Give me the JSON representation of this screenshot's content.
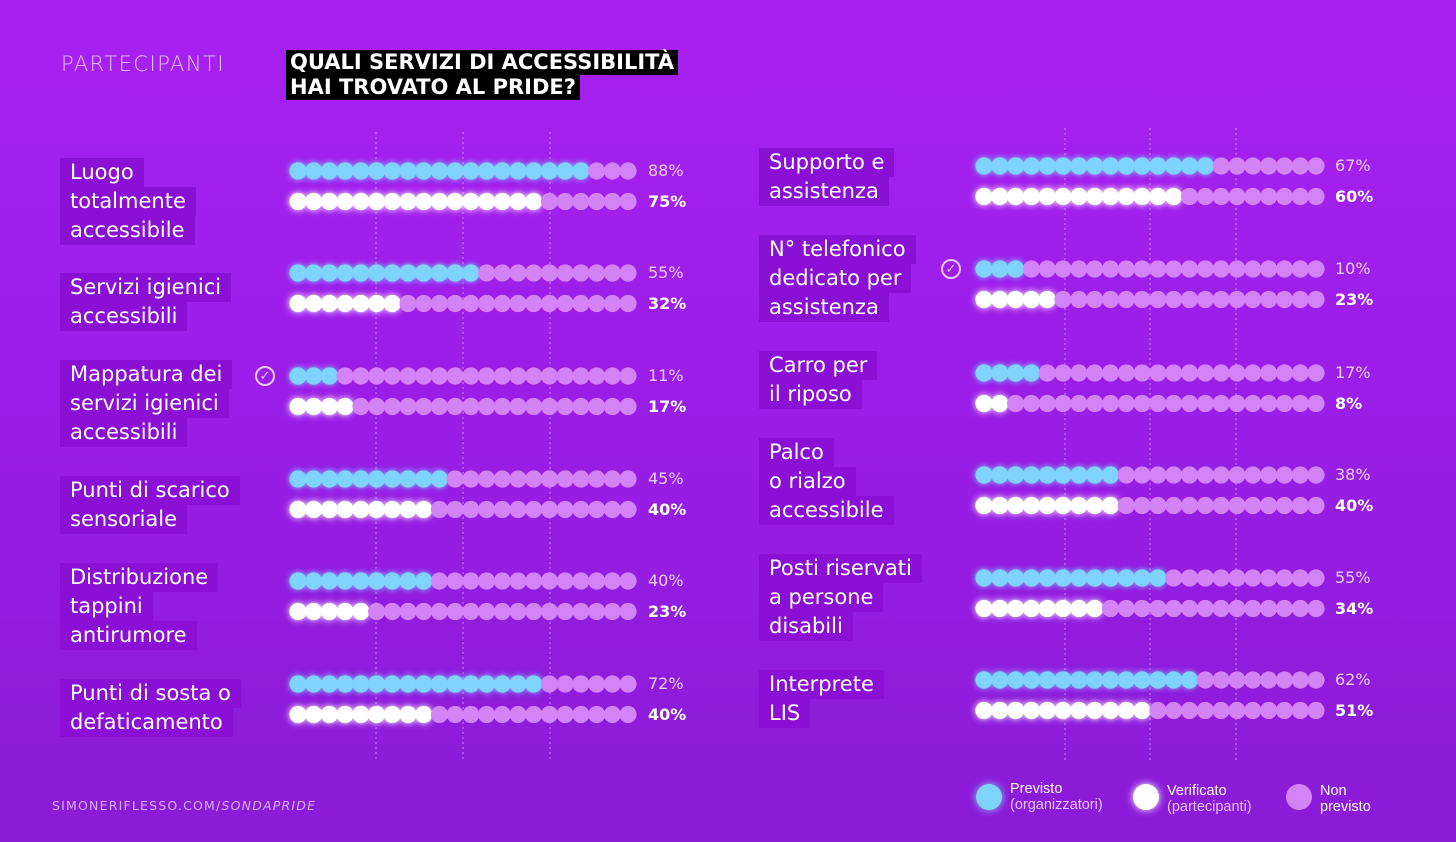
{
  "header": {
    "section_label": "PARTECIPANTI",
    "title_line1": "QUALI SERVIZI DI ACCESSIBILITÀ",
    "title_line2": "HAI TROVATO AL PRIDE?"
  },
  "footer": {
    "site": "SIMONERIFLESSO.COM/",
    "path": "SONDAPRIDE"
  },
  "legend": {
    "previsto": "Previsto",
    "previsto_sub": "(organizzatori)",
    "verificato": "Verificato",
    "verificato_sub": "(partecipanti)",
    "non_previsto_1": "Non",
    "non_previsto_2": "previsto"
  },
  "colors": {
    "previsto": "#7fd3ff",
    "verificato": "#ffffff",
    "non_previsto": "#d483f7",
    "label_bg": "#8a10d6"
  },
  "chart_data": [
    {
      "type": "bar",
      "categories": [
        [
          "Luogo",
          "totalmente",
          "accessibile"
        ],
        [
          "Servizi igienici",
          "accessibili"
        ],
        [
          "Mappatura dei",
          "servizi igienici",
          "accessibili"
        ],
        [
          "Punti di scarico",
          "sensoriale"
        ],
        [
          "Distribuzione",
          "tappini",
          "antirumore"
        ],
        [
          "Punti di sosta o",
          "defaticamento"
        ]
      ],
      "series": [
        {
          "name": "Previsto (organizzatori)",
          "values": [
            88,
            55,
            11,
            45,
            40,
            72
          ],
          "labels": [
            "88%",
            "55%",
            "11%",
            "45%",
            "40%",
            "72%"
          ]
        },
        {
          "name": "Verificato (partecipanti)",
          "values": [
            75,
            32,
            17,
            40,
            23,
            40
          ],
          "labels": [
            "75%",
            "32%",
            "17%",
            "40%",
            "23%",
            "40%"
          ]
        }
      ],
      "checked": [
        false,
        false,
        true,
        false,
        false,
        false
      ],
      "ylim": [
        0,
        100
      ]
    },
    {
      "type": "bar",
      "categories": [
        [
          "Supporto e",
          "assistenza"
        ],
        [
          "N° telefonico",
          "dedicato per",
          "assistenza"
        ],
        [
          "Carro per",
          "il riposo"
        ],
        [
          "Palco",
          "o rialzo",
          "accessibile"
        ],
        [
          "Posti riservati",
          "a persone",
          "disabili"
        ],
        [
          "Interprete",
          "LIS"
        ]
      ],
      "series": [
        {
          "name": "Previsto (organizzatori)",
          "values": [
            67,
            10,
            17,
            38,
            55,
            62
          ],
          "labels": [
            "67%",
            "10%",
            "17%",
            "38%",
            "55%",
            "62%"
          ]
        },
        {
          "name": "Verificato (partecipanti)",
          "values": [
            60,
            23,
            8,
            40,
            34,
            51
          ],
          "labels": [
            "60%",
            "23%",
            "8%",
            "40%",
            "34%",
            "51%"
          ]
        }
      ],
      "checked": [
        false,
        true,
        false,
        false,
        false,
        false
      ],
      "ylim": [
        0,
        100
      ]
    }
  ]
}
